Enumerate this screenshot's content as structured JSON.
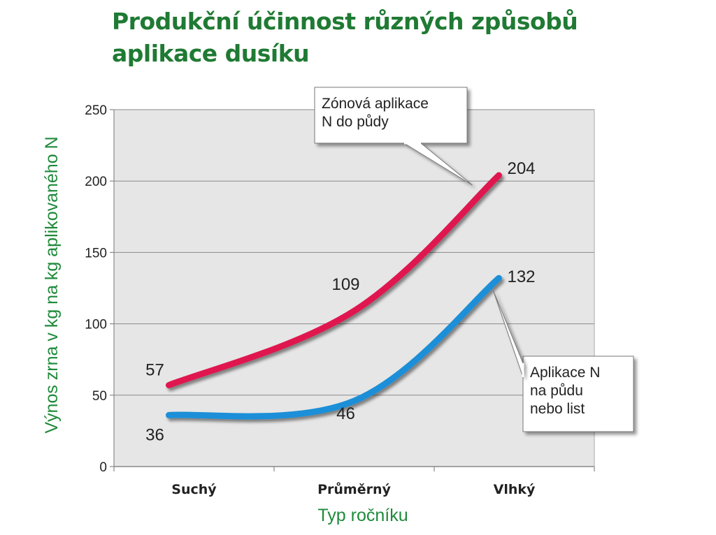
{
  "title_lines": [
    "Produkční účinnost různých způsobů",
    "aplikace dusíku"
  ],
  "colors": {
    "title": "#1f7a33",
    "axis_title": "#1f8a3a",
    "plot_bg": "#e6e6e6",
    "series_zonal": "#e0164f",
    "series_broadcast": "#1b8fd8"
  },
  "chart_data": {
    "type": "line",
    "title": "Produkční účinnost různých způsobů aplikace dusíku",
    "xlabel": "Typ ročníku",
    "ylabel": "Výnos zrna v kg na kg aplikovaného N",
    "categories": [
      "Suchý",
      "Průměrný",
      "Vlhký"
    ],
    "ylim": [
      0,
      250
    ],
    "yticks": [
      0,
      50,
      100,
      150,
      200,
      250
    ],
    "grid": true,
    "series": [
      {
        "name": "Zónová aplikace N do půdy",
        "values": [
          57,
          109,
          204
        ],
        "labels": [
          "57",
          "109",
          "204"
        ],
        "callout_lines": [
          "Zónová aplikace",
          "N do půdy"
        ]
      },
      {
        "name": "Aplikace N na půdu nebo list",
        "values": [
          36,
          46,
          132
        ],
        "labels": [
          "36",
          "46",
          "132"
        ],
        "callout_lines": [
          "Aplikace N",
          "na půdu",
          "nebo list"
        ]
      }
    ]
  }
}
